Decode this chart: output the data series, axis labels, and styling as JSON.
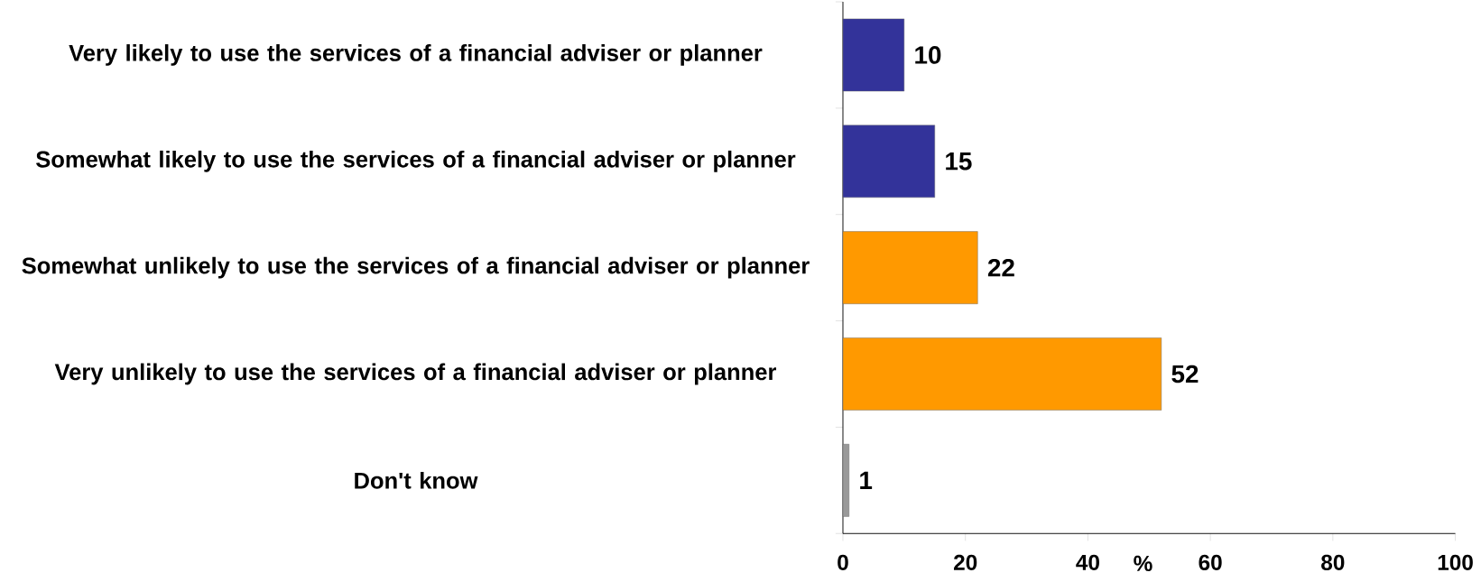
{
  "chart_data": {
    "type": "bar",
    "orientation": "horizontal",
    "xlabel": "%",
    "categories": [
      "Very likely to use the services of a financial adviser or planner",
      "Somewhat likely to use the services of a financial adviser or planner",
      "Somewhat unlikely to use the services of a financial adviser or planner",
      "Very unlikely to use the services of a financial adviser or planner",
      "Don't know"
    ],
    "values": [
      10,
      15,
      22,
      52,
      1
    ],
    "colors": [
      "#33339a",
      "#33339a",
      "#ff9900",
      "#ff9900",
      "#999999"
    ],
    "xlim": [
      0,
      100
    ],
    "xticks": [
      0,
      20,
      40,
      60,
      80,
      100
    ],
    "data_labels": true,
    "grid": false
  }
}
